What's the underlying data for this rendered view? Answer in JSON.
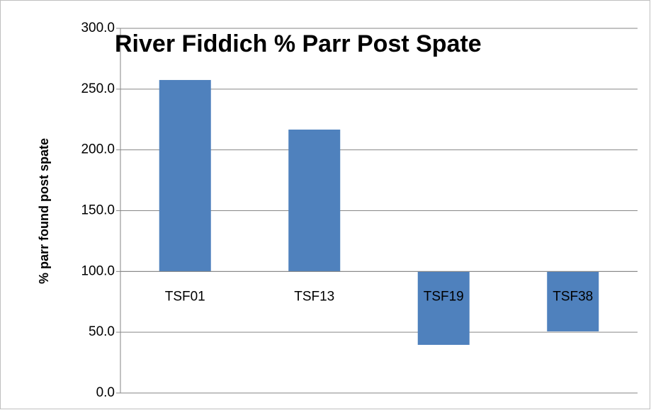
{
  "chart_data": {
    "type": "bar",
    "title": "River Fiddich % Parr Post Spate",
    "y_label": "% parr found post spate",
    "categories": [
      "TSF01",
      "TSF13",
      "TSF19",
      "TSF38"
    ],
    "values": [
      257.5,
      216.7,
      39.6,
      50.7
    ],
    "color": "#4f81bd",
    "baseline": 100,
    "ylim": [
      0,
      300
    ],
    "yticks": [
      {
        "value": 0,
        "label": "0.0"
      },
      {
        "value": 50,
        "label": "50.0"
      },
      {
        "value": 100,
        "label": "100.0"
      },
      {
        "value": 150,
        "label": "150.0"
      },
      {
        "value": 200,
        "label": "200.0"
      },
      {
        "value": 250,
        "label": "250.0"
      },
      {
        "value": 300,
        "label": "300.0"
      }
    ],
    "grid": true
  }
}
